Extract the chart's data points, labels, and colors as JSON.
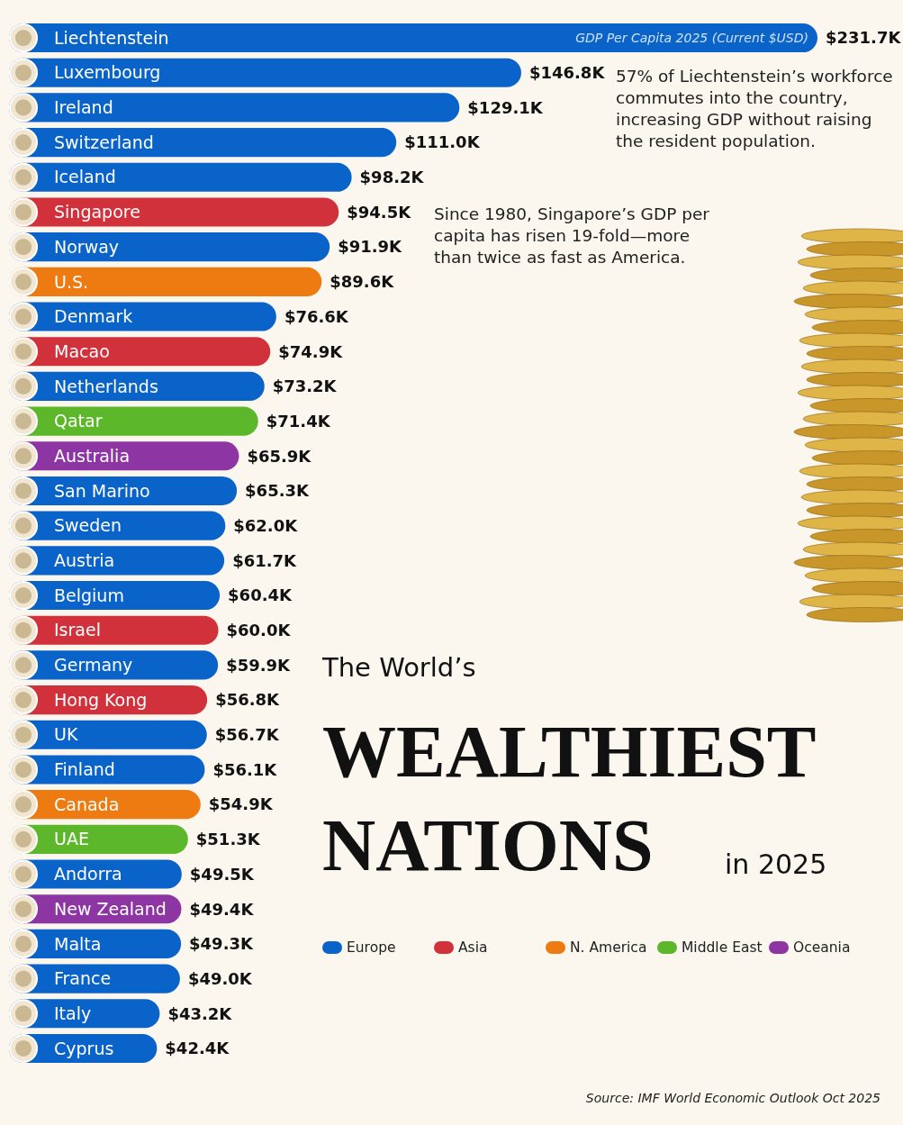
{
  "chart_data": {
    "type": "bar",
    "orientation": "horizontal",
    "stacked": true,
    "legend": "bottom right",
    "title": "WEALTHIEST NATIONS",
    "subtitle": "The World’s",
    "categories": [
      "Liechtenstein",
      "Luxembourg",
      "Ireland",
      "Switzerland",
      "Iceland",
      "Singapore",
      "Norway",
      "U.S.",
      "Denmark",
      "Macao",
      "Netherlands",
      "Qatar",
      "Australia",
      "San Marino",
      "Sweden",
      "Austria",
      "Belgium",
      "Israel",
      "Germany",
      "Hong Kong",
      "UK",
      "Finland",
      "Canada",
      "UAE",
      "Andorra",
      "New Zealand",
      "Malta",
      "France",
      "Italy",
      "Cyprus"
    ],
    "series": [
      {
        "name": "Europe",
        "color": "#0a63c9",
        "values": [
          231.7,
          146.8,
          129.1,
          111.0,
          98.2,
          null,
          91.9,
          null,
          76.6,
          null,
          73.2,
          null,
          null,
          65.3,
          62.0,
          61.7,
          60.4,
          null,
          59.9,
          null,
          56.7,
          56.1,
          null,
          null,
          49.5,
          null,
          49.3,
          49.0,
          43.2,
          42.4
        ],
        "value_labels": [
          "$231.7K",
          "$146.8K",
          "$129.1K",
          "$111.0K",
          "$98.2K",
          null,
          "$91.9K",
          null,
          "$76.6K",
          null,
          "$73.2K",
          null,
          null,
          "$65.3K",
          "$62.0K",
          "$61.7K",
          "$60.4K",
          null,
          "$59.9K",
          null,
          "$56.7K",
          "$56.1K",
          null,
          null,
          "$49.5K",
          null,
          "$49.3K",
          "$49.0K",
          "$43.2K",
          "$42.4K"
        ]
      },
      {
        "name": "Asia",
        "color": "#d1313b",
        "values": [
          null,
          null,
          null,
          null,
          null,
          94.5,
          null,
          null,
          null,
          74.9,
          null,
          null,
          null,
          null,
          null,
          null,
          null,
          60.0,
          null,
          56.8,
          null,
          null,
          null,
          null,
          null,
          null,
          null,
          null,
          null,
          null
        ],
        "value_labels": [
          null,
          null,
          null,
          null,
          null,
          "$94.5K",
          null,
          null,
          null,
          "$74.9K",
          null,
          null,
          null,
          null,
          null,
          null,
          null,
          "$60.0K",
          null,
          "$56.8K",
          null,
          null,
          null,
          null,
          null,
          null,
          null,
          null,
          null,
          null
        ]
      },
      {
        "name": "N. America",
        "color": "#ee7a12",
        "values": [
          null,
          null,
          null,
          null,
          null,
          null,
          null,
          89.6,
          null,
          null,
          null,
          null,
          null,
          null,
          null,
          null,
          null,
          null,
          null,
          null,
          null,
          null,
          54.9,
          null,
          null,
          null,
          null,
          null,
          null,
          null
        ],
        "value_labels": [
          null,
          null,
          null,
          null,
          null,
          null,
          null,
          "$89.6K",
          null,
          null,
          null,
          null,
          null,
          null,
          null,
          null,
          null,
          null,
          null,
          null,
          null,
          null,
          "$54.9K",
          null,
          null,
          null,
          null,
          null,
          null,
          null
        ]
      },
      {
        "name": "Middle East",
        "color": "#5cb82a",
        "values": [
          null,
          null,
          null,
          null,
          null,
          null,
          null,
          null,
          null,
          null,
          null,
          71.4,
          null,
          null,
          null,
          null,
          null,
          null,
          null,
          null,
          null,
          null,
          null,
          51.3,
          null,
          null,
          null,
          null,
          null,
          null
        ],
        "value_labels": [
          null,
          null,
          null,
          null,
          null,
          null,
          null,
          null,
          null,
          null,
          null,
          "$71.4K",
          null,
          null,
          null,
          null,
          null,
          null,
          null,
          null,
          null,
          null,
          null,
          "$51.3K",
          null,
          null,
          null,
          null,
          null,
          null
        ]
      },
      {
        "name": "Oceania",
        "color": "#8c35a3",
        "values": [
          null,
          null,
          null,
          null,
          null,
          null,
          null,
          null,
          null,
          null,
          null,
          null,
          65.9,
          null,
          null,
          null,
          null,
          null,
          null,
          null,
          null,
          null,
          null,
          null,
          null,
          49.4,
          null,
          null,
          null,
          null
        ],
        "value_labels": [
          null,
          null,
          null,
          null,
          null,
          null,
          null,
          null,
          null,
          null,
          null,
          null,
          "$65.9K",
          null,
          null,
          null,
          null,
          null,
          null,
          null,
          null,
          null,
          null,
          null,
          null,
          "$49.4K",
          null,
          null,
          null,
          null
        ]
      }
    ],
    "annotations": [
      "GDP Per Capita 2025 (Current $USD)",
      "in 2025",
      "57% of Liechtenstein’s workforce commutes into the country, increasing GDP without raising the resident population.",
      "Since 1980, Singapore’s GDP per capita has risen 19-fold—more than twice as fast as America.",
      "Source: IMF World Economic Outlook Oct 2025"
    ]
  }
}
